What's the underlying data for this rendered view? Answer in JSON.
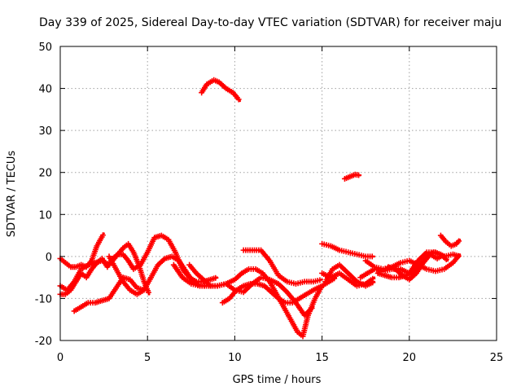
{
  "chart_data": {
    "type": "scatter",
    "title": "Day 339 of 2025, Sidereal Day-to-day VTEC variation (SDTVAR) for receiver maju",
    "xlabel": "GPS time / hours",
    "ylabel": "SDTVAR / TECUs",
    "xlim": [
      0,
      25
    ],
    "ylim": [
      -20,
      50
    ],
    "xticks": [
      0,
      5,
      10,
      15,
      20,
      25
    ],
    "yticks": [
      -20,
      -10,
      0,
      10,
      20,
      30,
      40,
      50
    ],
    "grid": true,
    "marker": "plus",
    "color": "#ff0000",
    "series": [
      {
        "name": "s1",
        "x": [
          8.1,
          8.4,
          8.8,
          9.1,
          9.5,
          9.9,
          10.3
        ],
        "y": [
          39,
          41,
          42,
          41.5,
          40,
          39,
          37
        ]
      },
      {
        "name": "s2",
        "x": [
          16.3,
          16.6,
          16.9,
          17.2
        ],
        "y": [
          18.5,
          19,
          19.5,
          19.3
        ]
      },
      {
        "name": "s3",
        "x": [
          0,
          0.3,
          0.6,
          0.9,
          1.2,
          1.5,
          1.8,
          2.1,
          2.5
        ],
        "y": [
          -0.5,
          -1.5,
          -2.5,
          -2.5,
          -2,
          -2.5,
          -1,
          2.5,
          5.5
        ]
      },
      {
        "name": "s4",
        "x": [
          0,
          0.4,
          0.8,
          1.2,
          1.6,
          2.0,
          2.4,
          2.8,
          3.2,
          3.6,
          3.9,
          4.2,
          4.5,
          4.8,
          5.1
        ],
        "y": [
          -7,
          -8,
          -6,
          -3,
          -2,
          -1.5,
          -1,
          -2,
          0,
          2,
          3,
          1,
          -2,
          -6,
          -9
        ]
      },
      {
        "name": "s5",
        "x": [
          0.8,
          1.2,
          1.6,
          2.0,
          2.4,
          2.8,
          3.2,
          3.6,
          4.0,
          4.4,
          4.8
        ],
        "y": [
          -13,
          -12,
          -11,
          -11,
          -10.5,
          -10,
          -7.5,
          -5,
          -5.5,
          -7.5,
          -8
        ]
      },
      {
        "name": "s6",
        "x": [
          0,
          0.3,
          0.6,
          0.9,
          1.2,
          1.5,
          1.8,
          2.1,
          2.4,
          2.7,
          3.0,
          3.3,
          3.6,
          3.9,
          4.2,
          4.6,
          5.0,
          5.4,
          5.8,
          6.2,
          6.6,
          7.0,
          7.4,
          7.8,
          8.2,
          8.6,
          9.0
        ],
        "y": [
          -9,
          -9,
          -8,
          -6,
          -4,
          -5,
          -3,
          -1.5,
          -0.5,
          -2.5,
          -0.5,
          0.5,
          0.5,
          -1,
          -3,
          -2,
          1,
          4.5,
          5,
          4,
          1,
          -3,
          -5,
          -6,
          -6,
          -5.5,
          -5
        ]
      },
      {
        "name": "s7",
        "x": [
          2.8,
          3.2,
          3.6,
          4.0,
          4.4,
          4.8,
          5.2,
          5.6,
          6.0,
          6.4,
          6.8,
          7.2,
          7.6,
          8.0,
          8.4
        ],
        "y": [
          0,
          -3,
          -6,
          -8,
          -9,
          -8,
          -5,
          -2,
          -0.5,
          0,
          -1,
          -3.5,
          -6,
          -7,
          -7
        ]
      },
      {
        "name": "s8",
        "x": [
          6.5,
          7.0,
          7.5,
          8.0,
          8.5,
          9.0,
          9.5,
          10.0,
          10.4,
          10.8,
          11.2,
          11.6,
          12.0,
          12.4,
          12.8,
          13.2,
          13.6,
          13.9,
          14.2,
          14.6,
          15.0,
          15.4,
          15.8
        ],
        "y": [
          -2,
          -5,
          -6.5,
          -7,
          -7,
          -7,
          -6.5,
          -5.5,
          -4,
          -3,
          -3,
          -4,
          -6,
          -9,
          -12,
          -15,
          -18,
          -19,
          -14,
          -10,
          -7,
          -6,
          -5
        ]
      },
      {
        "name": "s9",
        "x": [
          7.4,
          7.8,
          8.2,
          8.6,
          9.0,
          9.5,
          10.0,
          10.5,
          11.0,
          11.5,
          12.0,
          12.5,
          13.0,
          13.5,
          14.0,
          14.5
        ],
        "y": [
          -2,
          -4,
          -5.5,
          -7,
          -7,
          -6.5,
          -8,
          -8.5,
          -6.5,
          -5,
          -5.5,
          -6.5,
          -8.5,
          -11,
          -14,
          -12
        ]
      },
      {
        "name": "s10",
        "x": [
          9.3,
          9.7,
          10.1,
          10.5,
          10.9,
          11.3,
          11.7,
          12.1,
          12.5,
          12.9,
          13.3,
          13.7,
          14.1,
          14.5,
          15.0
        ],
        "y": [
          -11,
          -10,
          -8,
          -7,
          -6.5,
          -6.5,
          -7,
          -8.5,
          -10,
          -11,
          -11,
          -10,
          -9,
          -8,
          -7
        ]
      },
      {
        "name": "s11",
        "x": [
          10.5,
          11.0,
          11.5,
          12.0,
          12.5,
          13.0,
          13.5,
          14.0,
          14.5,
          15.0
        ],
        "y": [
          1.5,
          1.5,
          1.5,
          -1,
          -4.5,
          -6,
          -6.5,
          -6,
          -6,
          -5.5
        ]
      },
      {
        "name": "s12",
        "x": [
          15.0,
          15.5,
          16.0,
          16.5,
          17.0,
          17.5,
          18.0
        ],
        "y": [
          -4,
          -5,
          -4,
          -5.5,
          -7,
          -6.5,
          -5
        ]
      },
      {
        "name": "s13",
        "x": [
          15.2,
          15.6,
          16.0,
          16.5,
          17.0,
          17.5,
          18.0
        ],
        "y": [
          -6,
          -3,
          -2,
          -4,
          -6,
          -7,
          -6
        ]
      },
      {
        "name": "s14",
        "x": [
          15.0,
          15.5,
          16.0,
          16.5,
          17.0,
          17.5,
          18.0
        ],
        "y": [
          3,
          2.5,
          1.5,
          1,
          0.5,
          0,
          0
        ]
      },
      {
        "name": "s15",
        "x": [
          17.2,
          17.6,
          18.0,
          18.5,
          19.0,
          19.5,
          20.0,
          20.5,
          21.0,
          21.5,
          22.0,
          22.5,
          22.9
        ],
        "y": [
          -5,
          -4,
          -3,
          -3.5,
          -3,
          -3,
          -4,
          -1,
          1,
          1,
          0,
          0.5,
          0
        ]
      },
      {
        "name": "s16",
        "x": [
          17.5,
          18.0,
          18.5,
          19.0,
          19.5,
          20.0,
          20.5,
          21.0,
          21.5,
          22.0,
          22.5,
          22.9
        ],
        "y": [
          -1,
          -2.5,
          -3,
          -2.5,
          -1.5,
          -1,
          -2,
          -3,
          -3.5,
          -3,
          -1.5,
          0.5
        ]
      },
      {
        "name": "s17",
        "x": [
          18.2,
          18.6,
          19.0,
          19.4,
          19.8,
          20.2,
          20.6,
          21.0,
          21.4,
          21.8,
          22.2
        ],
        "y": [
          -4,
          -4.5,
          -5,
          -5,
          -4.5,
          -4,
          -2,
          0,
          1,
          0.5,
          -1
        ]
      },
      {
        "name": "s18",
        "x": [
          18.8,
          19.2,
          19.6,
          20.0,
          20.4,
          20.8,
          21.2,
          21.6,
          22.0
        ],
        "y": [
          -2.5,
          -3,
          -4.5,
          -5.5,
          -4,
          -1.5,
          0.5,
          -0.5,
          0.5
        ]
      },
      {
        "name": "s19",
        "x": [
          21.8,
          22.1,
          22.4,
          22.7,
          22.9
        ],
        "y": [
          5,
          3.5,
          2.5,
          3,
          4
        ]
      }
    ]
  }
}
